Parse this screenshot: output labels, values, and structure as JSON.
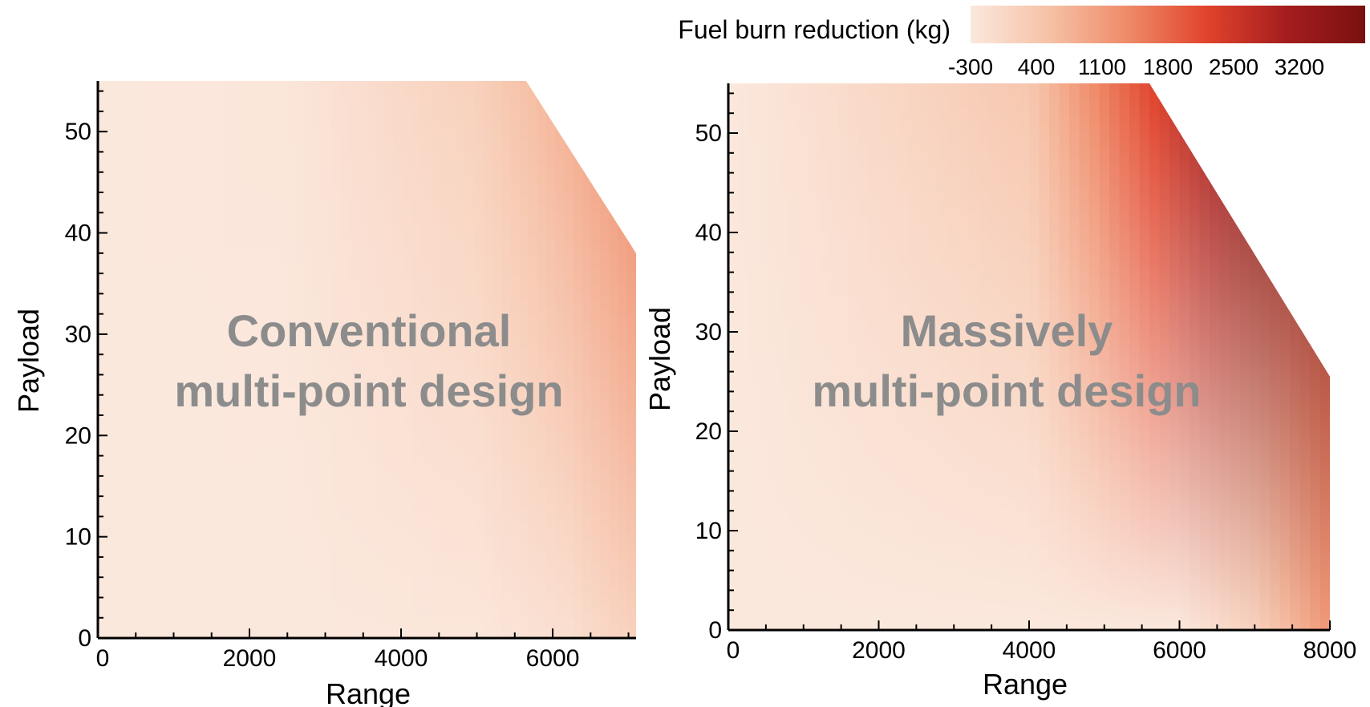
{
  "colorbar": {
    "title": "Fuel burn reduction (kg)",
    "ticks": [
      -300,
      400,
      1100,
      1800,
      2500,
      3200
    ],
    "range": [
      -300,
      3900
    ],
    "colors": [
      "#fbe8dd",
      "#f6c1a6",
      "#ef8a68",
      "#e0432c",
      "#a51d1d",
      "#7a1010"
    ]
  },
  "chart_data": [
    {
      "type": "heatmap",
      "overlay_text": [
        "Conventional",
        "multi-point design"
      ],
      "xlabel": "Range",
      "ylabel": "Payload",
      "xlim": [
        0,
        7100
      ],
      "ylim": [
        0,
        55
      ],
      "x_ticks": [
        0,
        2000,
        4000,
        6000
      ],
      "y_ticks": [
        0,
        10,
        20,
        30,
        40,
        50
      ],
      "feasible_boundary": [
        [
          0,
          0
        ],
        [
          0,
          55
        ],
        [
          5650,
          55
        ],
        [
          7100,
          38
        ],
        [
          7100,
          0
        ]
      ],
      "field": {
        "x": [
          0,
          2500,
          5000,
          6200,
          7100
        ],
        "value_at_payload_0": [
          -300,
          -300,
          -250,
          -100,
          200
        ],
        "value_at_payload_55": [
          -300,
          -250,
          200,
          800,
          1400
        ]
      }
    },
    {
      "type": "heatmap",
      "overlay_text": [
        "Massively",
        "multi-point design"
      ],
      "xlabel": "Range",
      "ylabel": "Payload",
      "xlim": [
        0,
        8000
      ],
      "ylim": [
        0,
        55
      ],
      "x_ticks": [
        0,
        2000,
        4000,
        6000,
        8000
      ],
      "y_ticks": [
        0,
        10,
        20,
        30,
        40,
        50
      ],
      "feasible_boundary": [
        [
          0,
          0
        ],
        [
          0,
          55
        ],
        [
          5600,
          55
        ],
        [
          8000,
          25.5
        ],
        [
          8000,
          0
        ]
      ],
      "field": {
        "x": [
          0,
          4000,
          6000,
          7000,
          8000
        ],
        "value_at_payload_0": [
          -300,
          -350,
          -300,
          200,
          1200
        ],
        "value_at_payload_55": [
          -300,
          400,
          2600,
          3600,
          3900
        ]
      }
    }
  ]
}
